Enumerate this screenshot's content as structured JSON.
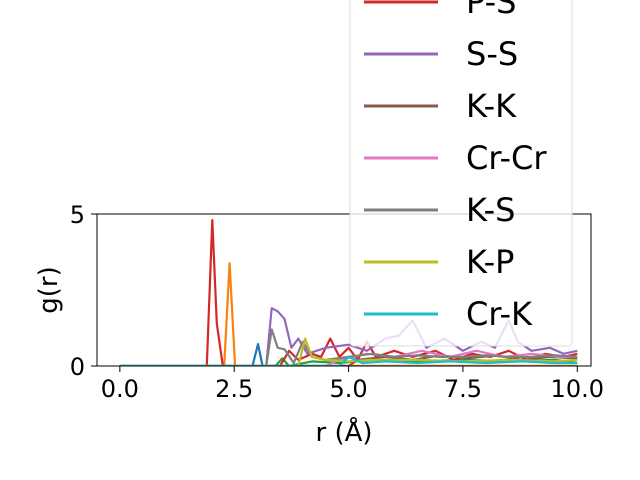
{
  "chart_data": {
    "type": "line",
    "title": "",
    "xlabel": "r (Å)",
    "ylabel": "g(r)",
    "xlim": [
      -0.5,
      10.3
    ],
    "ylim": [
      0,
      5
    ],
    "x_ticks": [
      0.0,
      2.5,
      5.0,
      7.5,
      10.0
    ],
    "x_tick_labels": [
      "0.0",
      "2.5",
      "5.0",
      "7.5",
      "10.0"
    ],
    "y_ticks": [
      0,
      5
    ],
    "y_tick_labels": [
      "0",
      "5"
    ],
    "grid": false,
    "legend_position": "right (overflowing above the axes)",
    "series": [
      {
        "name": "",
        "color": "#1f77b4",
        "points": [
          [
            0,
            0
          ],
          [
            2.9,
            0
          ],
          [
            3.02,
            0.72
          ],
          [
            3.12,
            0
          ],
          [
            10,
            0
          ]
        ]
      },
      {
        "name": "",
        "color": "#ff7f0e",
        "points": [
          [
            0,
            0
          ],
          [
            2.28,
            0
          ],
          [
            2.4,
            3.38
          ],
          [
            2.52,
            0
          ],
          [
            10,
            0
          ]
        ]
      },
      {
        "name": "",
        "color": "#2ca02c",
        "points": [
          [
            0,
            0
          ],
          [
            3.4,
            0
          ],
          [
            3.55,
            0.25
          ],
          [
            3.7,
            0
          ],
          [
            4.2,
            0.15
          ],
          [
            4.8,
            0.1
          ],
          [
            5.5,
            0.2
          ],
          [
            6.5,
            0.15
          ],
          [
            7.5,
            0.2
          ],
          [
            8.5,
            0.15
          ],
          [
            9.5,
            0.2
          ],
          [
            10,
            0.1
          ]
        ]
      },
      {
        "name": "P-S",
        "color": "#d62728",
        "points": [
          [
            0,
            0
          ],
          [
            1.9,
            0
          ],
          [
            2.02,
            4.8
          ],
          [
            2.12,
            1.4
          ],
          [
            2.25,
            0
          ],
          [
            3.5,
            0
          ],
          [
            3.7,
            0.5
          ],
          [
            3.9,
            0.2
          ],
          [
            4.2,
            0.4
          ],
          [
            4.4,
            0.3
          ],
          [
            4.6,
            0.9
          ],
          [
            4.8,
            0.3
          ],
          [
            5.0,
            0.6
          ],
          [
            5.2,
            0.2
          ],
          [
            5.4,
            0.8
          ],
          [
            5.6,
            0.3
          ],
          [
            6.0,
            0.5
          ],
          [
            6.4,
            0.3
          ],
          [
            6.9,
            0.5
          ],
          [
            7.3,
            0.2
          ],
          [
            7.7,
            0.4
          ],
          [
            8.1,
            0.3
          ],
          [
            8.5,
            0.5
          ],
          [
            8.9,
            0.2
          ],
          [
            9.3,
            0.4
          ],
          [
            9.7,
            0.3
          ],
          [
            10,
            0.4
          ]
        ]
      },
      {
        "name": "S-S",
        "color": "#9467bd",
        "points": [
          [
            0,
            0
          ],
          [
            3.2,
            0
          ],
          [
            3.32,
            1.9
          ],
          [
            3.45,
            1.8
          ],
          [
            3.6,
            1.55
          ],
          [
            3.75,
            0.6
          ],
          [
            3.9,
            0.9
          ],
          [
            4.1,
            0.4
          ],
          [
            4.5,
            0.6
          ],
          [
            5.0,
            0.7
          ],
          [
            5.4,
            0.5
          ],
          [
            5.8,
            0.9
          ],
          [
            6.1,
            1.0
          ],
          [
            6.4,
            1.5
          ],
          [
            6.7,
            0.6
          ],
          [
            7.1,
            0.9
          ],
          [
            7.5,
            0.5
          ],
          [
            7.9,
            0.8
          ],
          [
            8.2,
            0.6
          ],
          [
            8.5,
            1.5
          ],
          [
            8.7,
            0.8
          ],
          [
            9.0,
            0.5
          ],
          [
            9.4,
            0.6
          ],
          [
            9.7,
            0.4
          ],
          [
            10,
            0.5
          ]
        ]
      },
      {
        "name": "K-K",
        "color": "#8c564b",
        "points": [
          [
            0,
            0
          ],
          [
            5.0,
            0
          ],
          [
            5.2,
            0.2
          ],
          [
            5.8,
            0.3
          ],
          [
            6.4,
            0.2
          ],
          [
            7.0,
            0.35
          ],
          [
            7.6,
            0.25
          ],
          [
            8.2,
            0.35
          ],
          [
            8.8,
            0.2
          ],
          [
            9.4,
            0.3
          ],
          [
            10,
            0.25
          ]
        ]
      },
      {
        "name": "Cr-Cr",
        "color": "#e377c2",
        "points": [
          [
            0,
            0
          ],
          [
            4.5,
            0
          ],
          [
            4.8,
            0.2
          ],
          [
            5.4,
            0.4
          ],
          [
            6.0,
            0.3
          ],
          [
            6.6,
            0.5
          ],
          [
            7.2,
            0.3
          ],
          [
            7.8,
            0.5
          ],
          [
            8.4,
            0.3
          ],
          [
            9.0,
            0.4
          ],
          [
            9.6,
            0.3
          ],
          [
            10,
            0.3
          ]
        ]
      },
      {
        "name": "K-S",
        "color": "#7f7f7f",
        "points": [
          [
            0,
            0
          ],
          [
            3.2,
            0
          ],
          [
            3.32,
            1.2
          ],
          [
            3.45,
            0.6
          ],
          [
            3.6,
            0.55
          ],
          [
            3.8,
            0.1
          ],
          [
            4.0,
            0.8
          ],
          [
            4.2,
            0.3
          ],
          [
            4.5,
            0.2
          ],
          [
            5.0,
            0.3
          ],
          [
            5.5,
            0.4
          ],
          [
            6.0,
            0.3
          ],
          [
            6.5,
            0.35
          ],
          [
            7.0,
            0.3
          ],
          [
            7.5,
            0.3
          ],
          [
            8.0,
            0.35
          ],
          [
            8.5,
            0.3
          ],
          [
            9.0,
            0.3
          ],
          [
            9.5,
            0.35
          ],
          [
            10,
            0.3
          ]
        ]
      },
      {
        "name": "K-P",
        "color": "#bcbd22",
        "points": [
          [
            0,
            0
          ],
          [
            3.9,
            0
          ],
          [
            4.05,
            0.9
          ],
          [
            4.2,
            0.3
          ],
          [
            4.5,
            0.2
          ],
          [
            5.0,
            0.15
          ],
          [
            5.5,
            0.2
          ],
          [
            6.5,
            0.2
          ],
          [
            7.5,
            0.15
          ],
          [
            8.5,
            0.2
          ],
          [
            9.5,
            0.15
          ],
          [
            10,
            0.2
          ]
        ]
      },
      {
        "name": "Cr-K",
        "color": "#17becf",
        "points": [
          [
            0,
            0
          ],
          [
            4.8,
            0
          ],
          [
            5.0,
            0.3
          ],
          [
            5.3,
            0.1
          ],
          [
            5.8,
            0.15
          ],
          [
            6.5,
            0.1
          ],
          [
            7.2,
            0.15
          ],
          [
            8.0,
            0.1
          ],
          [
            8.8,
            0.15
          ],
          [
            9.5,
            0.1
          ],
          [
            10,
            0.1
          ]
        ]
      }
    ]
  }
}
